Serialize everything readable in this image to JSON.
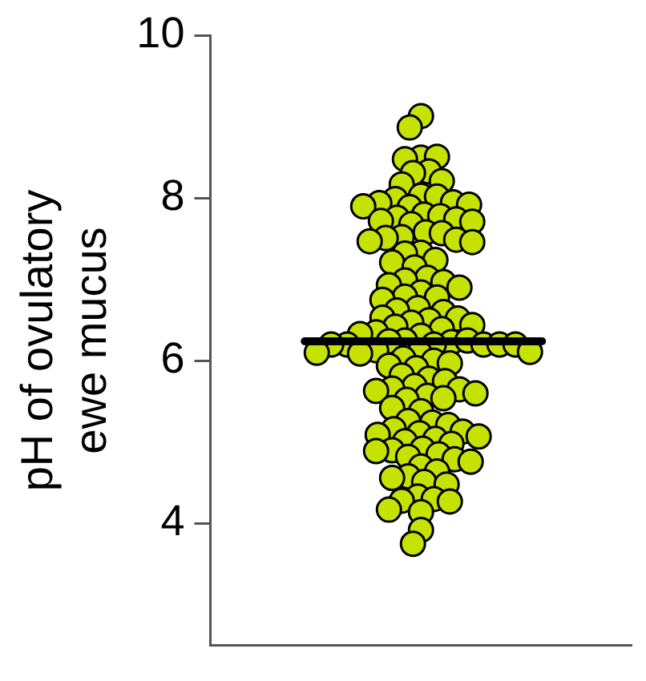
{
  "chart_data": {
    "type": "scatter",
    "ylabel": "pH of ovulatory ewe mucus",
    "categories": [
      null
    ],
    "ylim": [
      2.5,
      10
    ],
    "yticks": [
      4,
      6,
      8,
      10
    ],
    "tick_labels": "y",
    "grid": false,
    "legend": false,
    "marker": "circle",
    "ref_lines": [
      {
        "axis": "y",
        "value": 6.24,
        "color": "#000000"
      }
    ],
    "series": [
      {
        "color": "#c6e200",
        "x": [
          null,
          null,
          null,
          null,
          null,
          null,
          null,
          null,
          null,
          null,
          null,
          null,
          null,
          null,
          null,
          null,
          null,
          null,
          null,
          null,
          null,
          null,
          null,
          null,
          null,
          null,
          null,
          null,
          null,
          null,
          null,
          null,
          null,
          null,
          null,
          null,
          null,
          null,
          null,
          null,
          null,
          null,
          null,
          null,
          null,
          null,
          null,
          null,
          null,
          null,
          null,
          null,
          null,
          null,
          null,
          null,
          null,
          null,
          null,
          null,
          null,
          null,
          null,
          null,
          null,
          null,
          null,
          null,
          null,
          null,
          null,
          null,
          null,
          null,
          null,
          null,
          null,
          null,
          null,
          null,
          null,
          null,
          null,
          null,
          null,
          null,
          null,
          null,
          null,
          null,
          null,
          null,
          null,
          null,
          null,
          null,
          null,
          null,
          null,
          null,
          null,
          null,
          null,
          null,
          null,
          null,
          null,
          null,
          null,
          null,
          null,
          null,
          null,
          null,
          null,
          null,
          null,
          null,
          null,
          null,
          null,
          null,
          null
        ],
        "values": [
          9.01,
          8.87,
          8.5,
          8.48,
          8.51,
          8.33,
          8.31,
          8.21,
          8.17,
          8.03,
          8.02,
          7.99,
          7.95,
          7.94,
          7.92,
          7.9,
          7.89,
          7.8,
          7.78,
          7.76,
          7.74,
          7.72,
          7.68,
          7.71,
          7.58,
          7.57,
          7.52,
          7.51,
          7.49,
          7.47,
          7.46,
          7.33,
          7.32,
          7.24,
          7.21,
          7.15,
          7.02,
          6.99,
          6.97,
          6.93,
          6.9,
          6.84,
          6.79,
          6.78,
          6.75,
          6.65,
          6.62,
          6.6,
          6.53,
          6.52,
          6.5,
          6.47,
          6.44,
          6.42,
          6.39,
          6.35,
          6.33,
          6.31,
          6.25,
          6.24,
          6.23,
          6.25,
          6.2,
          6.2,
          6.2,
          6.2,
          6.2,
          6.2,
          6.13,
          6.1,
          6.1,
          6.11,
          6.09,
          6.03,
          6.0,
          5.97,
          5.94,
          5.91,
          5.82,
          5.78,
          5.75,
          5.69,
          5.66,
          5.65,
          5.63,
          5.6,
          5.57,
          5.54,
          5.52,
          5.42,
          5.38,
          5.26,
          5.24,
          5.21,
          5.16,
          5.13,
          5.11,
          5.09,
          5.07,
          5.04,
          5.01,
          4.98,
          4.92,
          4.9,
          4.89,
          4.85,
          4.82,
          4.79,
          4.76,
          4.7,
          4.64,
          4.58,
          4.56,
          4.51,
          4.48,
          4.33,
          4.3,
          4.28,
          4.27,
          4.17,
          4.14,
          3.92,
          3.75
        ]
      }
    ]
  }
}
